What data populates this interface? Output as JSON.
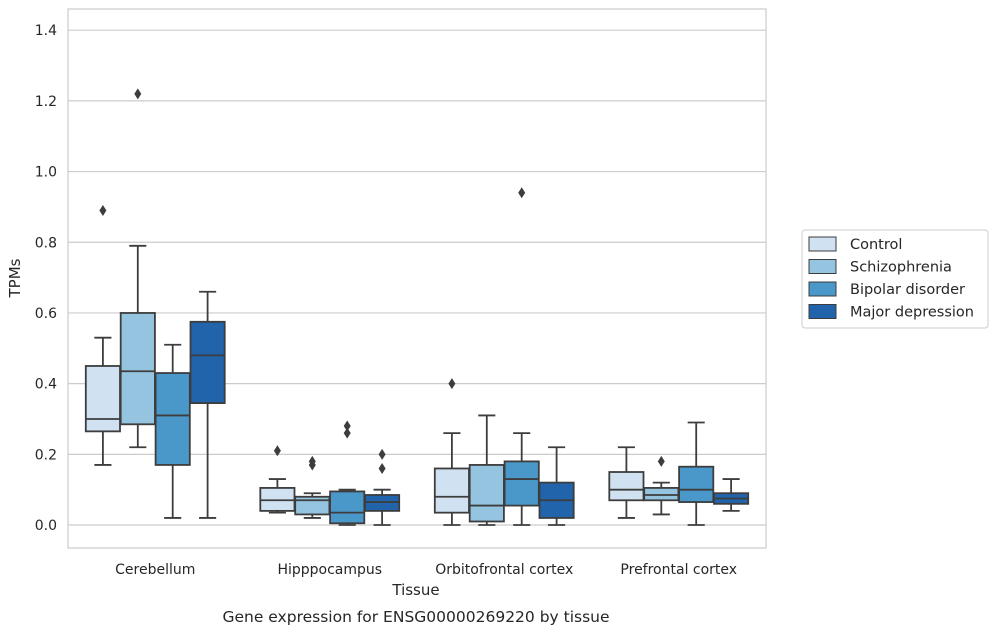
{
  "caption": "Gene expression for ENSG00000269220 by tissue",
  "chart_data": {
    "type": "box",
    "xlabel": "Tissue",
    "ylabel": "TPMs",
    "ylim": [
      -0.065,
      1.46
    ],
    "y_ticks": [
      "0.0",
      "0.2",
      "0.4",
      "0.6",
      "0.8",
      "1.0",
      "1.2",
      "1.4"
    ],
    "y_tick_values": [
      0.0,
      0.2,
      0.4,
      0.6,
      0.8,
      1.0,
      1.2,
      1.4
    ],
    "grid": "horizontal",
    "legend_position": "right",
    "categories": [
      "Cerebellum",
      "Hipppocampus",
      "Orbitofrontal cortex",
      "Prefrontal cortex"
    ],
    "series": [
      {
        "name": "Control",
        "color": "#d0e1f2",
        "boxes": [
          {
            "min": 0.17,
            "q1": 0.265,
            "median": 0.3,
            "q3": 0.45,
            "max": 0.53,
            "outliers": [
              0.89
            ]
          },
          {
            "min": 0.035,
            "q1": 0.04,
            "median": 0.07,
            "q3": 0.105,
            "max": 0.13,
            "outliers": [
              0.21
            ]
          },
          {
            "min": 0.0,
            "q1": 0.035,
            "median": 0.08,
            "q3": 0.16,
            "max": 0.26,
            "outliers": [
              0.4
            ]
          },
          {
            "min": 0.02,
            "q1": 0.07,
            "median": 0.1,
            "q3": 0.15,
            "max": 0.22,
            "outliers": []
          }
        ]
      },
      {
        "name": "Schizophrenia",
        "color": "#94c4df",
        "boxes": [
          {
            "min": 0.22,
            "q1": 0.285,
            "median": 0.435,
            "q3": 0.6,
            "max": 0.79,
            "outliers": [
              1.22
            ]
          },
          {
            "min": 0.02,
            "q1": 0.03,
            "median": 0.07,
            "q3": 0.08,
            "max": 0.09,
            "outliers": [
              0.17,
              0.18
            ]
          },
          {
            "min": 0.0,
            "q1": 0.01,
            "median": 0.055,
            "q3": 0.17,
            "max": 0.31,
            "outliers": []
          },
          {
            "min": 0.03,
            "q1": 0.07,
            "median": 0.085,
            "q3": 0.105,
            "max": 0.12,
            "outliers": [
              0.18
            ]
          }
        ]
      },
      {
        "name": "Bipolar disorder",
        "color": "#4a98c9",
        "boxes": [
          {
            "min": 0.02,
            "q1": 0.17,
            "median": 0.31,
            "q3": 0.43,
            "max": 0.51,
            "outliers": []
          },
          {
            "min": 0.0,
            "q1": 0.005,
            "median": 0.035,
            "q3": 0.095,
            "max": 0.1,
            "outliers": [
              0.26,
              0.28
            ]
          },
          {
            "min": 0.0,
            "q1": 0.055,
            "median": 0.13,
            "q3": 0.18,
            "max": 0.26,
            "outliers": [
              0.94
            ]
          },
          {
            "min": 0.0,
            "q1": 0.065,
            "median": 0.1,
            "q3": 0.165,
            "max": 0.29,
            "outliers": []
          }
        ]
      },
      {
        "name": "Major depression",
        "color": "#2164ab",
        "boxes": [
          {
            "min": 0.02,
            "q1": 0.345,
            "median": 0.48,
            "q3": 0.575,
            "max": 0.66,
            "outliers": []
          },
          {
            "min": 0.0,
            "q1": 0.04,
            "median": 0.065,
            "q3": 0.085,
            "max": 0.1,
            "outliers": [
              0.16,
              0.2
            ]
          },
          {
            "min": 0.0,
            "q1": 0.02,
            "median": 0.07,
            "q3": 0.12,
            "max": 0.22,
            "outliers": []
          },
          {
            "min": 0.04,
            "q1": 0.06,
            "median": 0.075,
            "q3": 0.09,
            "max": 0.13,
            "outliers": []
          }
        ]
      }
    ]
  }
}
